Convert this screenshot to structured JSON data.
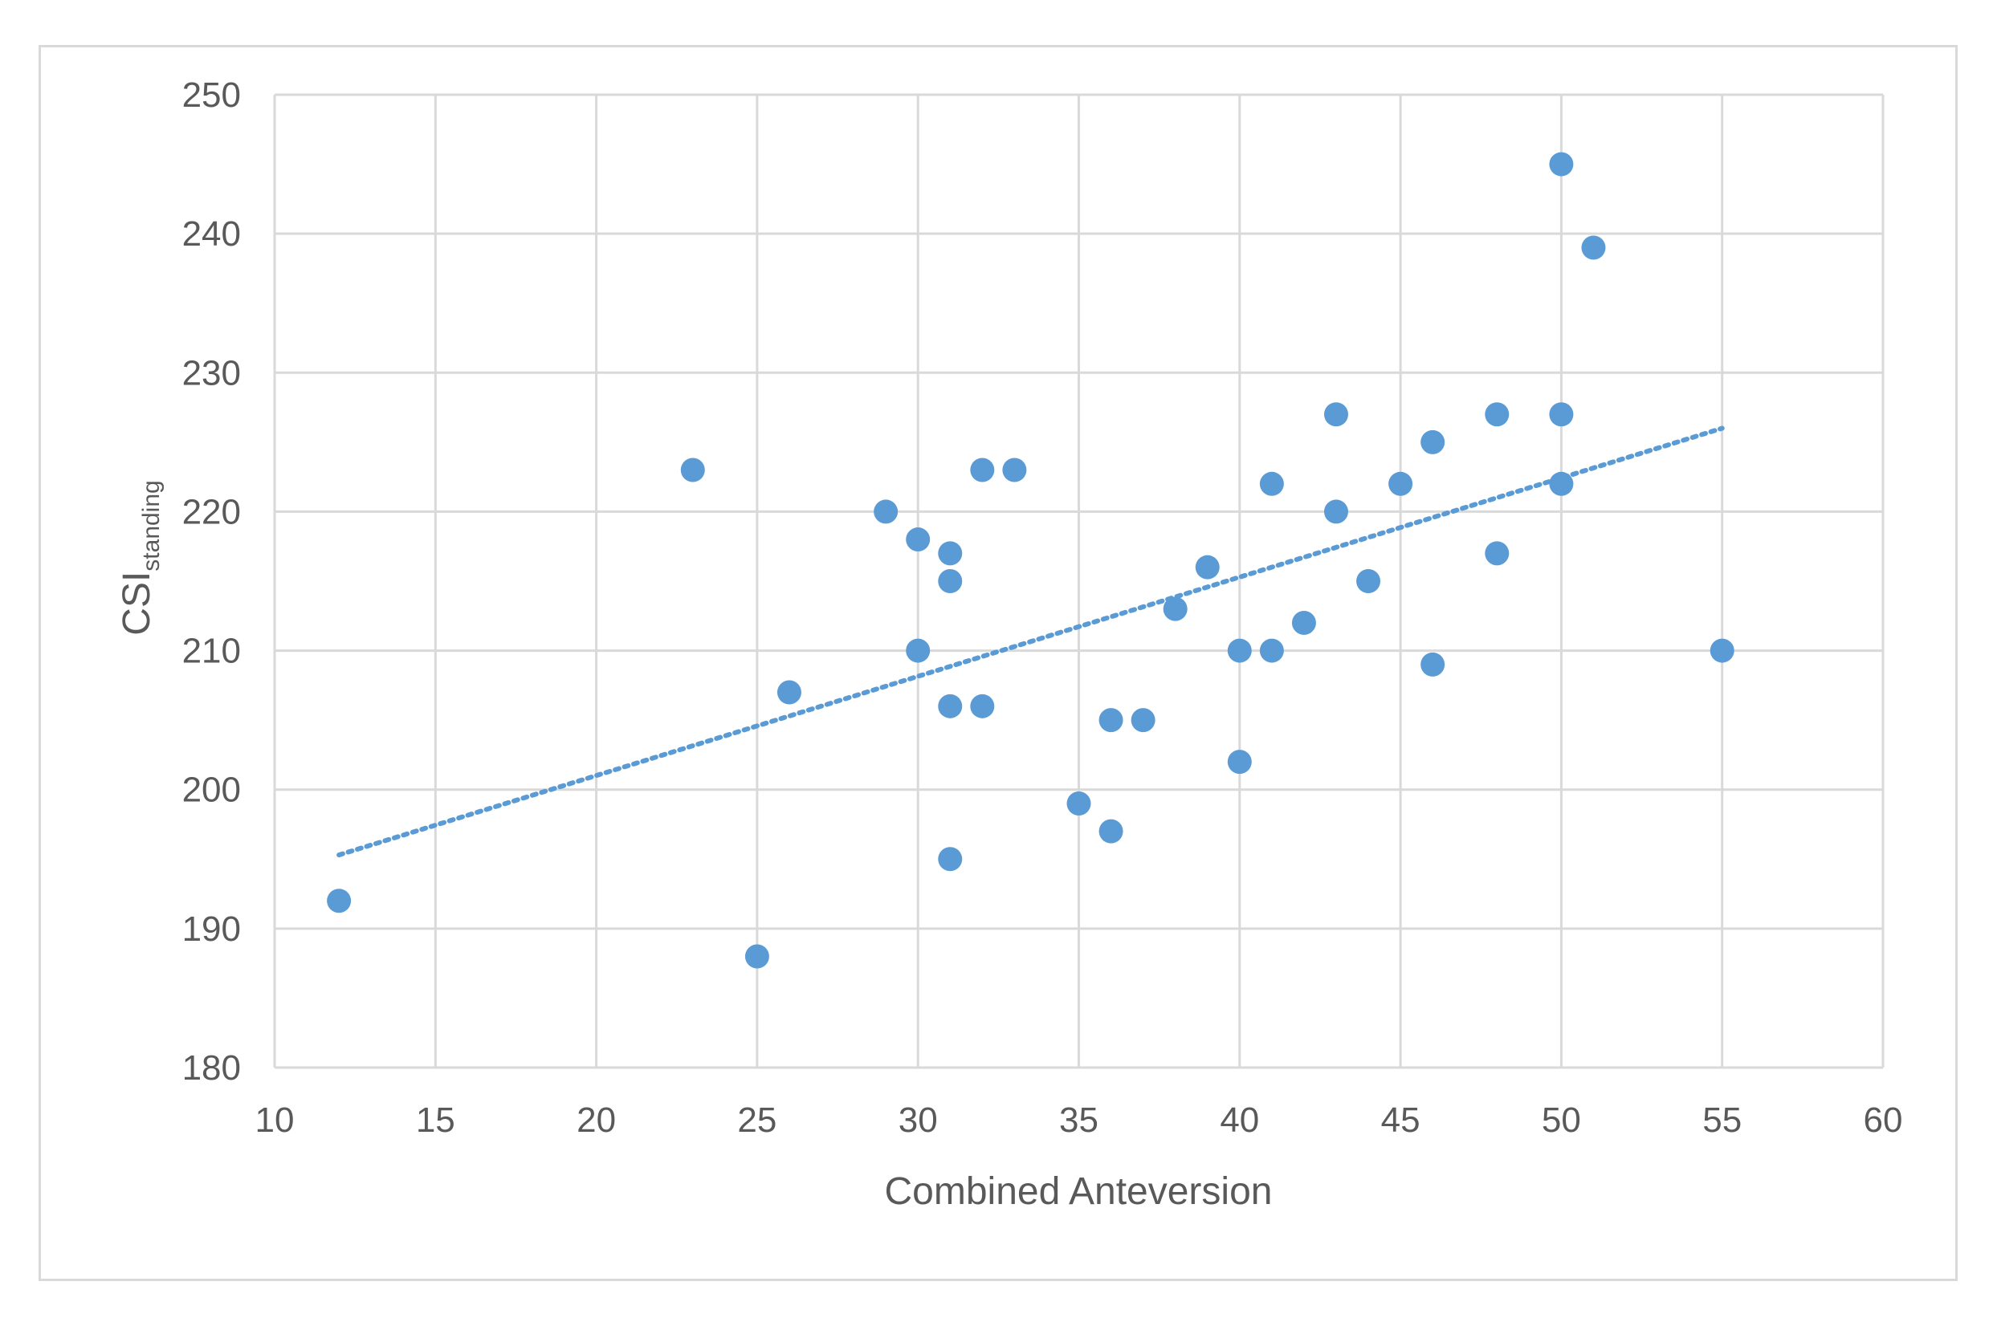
{
  "chart_data": {
    "type": "scatter",
    "xlabel": "Combined Anteversion",
    "ylabel": {
      "main": "CSI",
      "subscript": "standing"
    },
    "xlim": [
      10,
      60
    ],
    "ylim": [
      180,
      250
    ],
    "xticks": [
      10,
      15,
      20,
      25,
      30,
      35,
      40,
      45,
      50,
      55,
      60
    ],
    "yticks": [
      180,
      190,
      200,
      210,
      220,
      230,
      240,
      250
    ],
    "grid": true,
    "series": [
      {
        "color": "#5b9bd5",
        "x": [
          12,
          23,
          25,
          26,
          29,
          30,
          30,
          31,
          31,
          31,
          31,
          32,
          32,
          33,
          35,
          36,
          36,
          37,
          38,
          39,
          40,
          40,
          41,
          41,
          42,
          43,
          43,
          44,
          45,
          46,
          46,
          48,
          48,
          50,
          50,
          50,
          51,
          55
        ],
        "y": [
          192,
          223,
          188,
          207,
          220,
          218,
          210,
          217,
          215,
          206,
          195,
          223,
          206,
          223,
          199,
          205,
          197,
          205,
          213,
          216,
          210,
          202,
          222,
          210,
          212,
          227,
          220,
          215,
          222,
          225,
          209,
          227,
          217,
          245,
          227,
          222,
          239,
          210
        ]
      }
    ],
    "trendline": {
      "type": "linear",
      "style": "dotted",
      "color": "#5b9bd5",
      "x": [
        12,
        55
      ],
      "y": [
        195.3,
        226
      ]
    }
  }
}
